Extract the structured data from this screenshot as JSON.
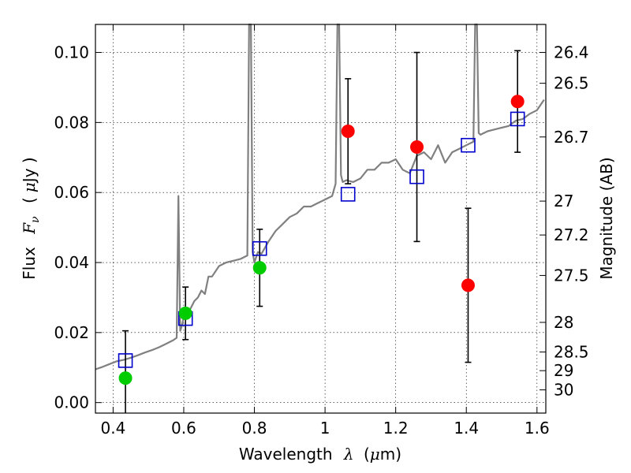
{
  "chart_data": {
    "type": "scatter",
    "title": "",
    "xlabel": "Wavelength",
    "xlabel_symbol": "λ",
    "xlabel_unit_pre": "(",
    "xlabel_unit_mu": "μ",
    "xlabel_unit_post": "m)",
    "ylabel": "Flux",
    "ylabel_symbol": "F",
    "ylabel_symbol_sub": "ν",
    "ylabel_unit_pre": "(",
    "ylabel_unit_mu": "μ",
    "ylabel_unit_post": "Jy )",
    "y2label": "Magnitude (AB)",
    "xlim": [
      0.35,
      1.625
    ],
    "ylim": [
      -0.003,
      0.108
    ],
    "grid": true,
    "xticks": [
      0.4,
      0.6,
      0.8,
      1.0,
      1.2,
      1.4,
      1.6
    ],
    "xtick_labels": [
      "0.4",
      "0.6",
      "0.8",
      "1",
      "1.2",
      "1.4",
      "1.6"
    ],
    "yticks": [
      0.0,
      0.02,
      0.04,
      0.06,
      0.08,
      0.1
    ],
    "ytick_labels": [
      "0.00",
      "0.02",
      "0.04",
      "0.06",
      "0.08",
      "0.10"
    ],
    "mag_ticks": [
      26.4,
      26.5,
      26.7,
      27,
      27.2,
      27.5,
      28,
      28.5,
      29,
      30
    ],
    "mag_tick_labels": [
      "26.4",
      "26.5",
      "26.7",
      "27",
      "27.2",
      "27.5",
      "28",
      "28.5",
      "29",
      "30"
    ],
    "series": [
      {
        "marker": "line",
        "color": "#808080",
        "x": [
          0.35,
          0.37,
          0.39,
          0.41,
          0.43,
          0.45,
          0.47,
          0.49,
          0.51,
          0.53,
          0.55,
          0.57,
          0.58,
          0.585,
          0.59,
          0.595,
          0.6,
          0.61,
          0.62,
          0.63,
          0.64,
          0.65,
          0.66,
          0.67,
          0.68,
          0.7,
          0.72,
          0.74,
          0.76,
          0.78,
          0.785,
          0.79,
          0.795,
          0.8,
          0.81,
          0.82,
          0.84,
          0.86,
          0.88,
          0.9,
          0.92,
          0.94,
          0.96,
          0.98,
          1.0,
          1.02,
          1.03,
          1.035,
          1.04,
          1.045,
          1.05,
          1.06,
          1.08,
          1.1,
          1.12,
          1.14,
          1.16,
          1.18,
          1.2,
          1.22,
          1.24,
          1.26,
          1.28,
          1.3,
          1.32,
          1.34,
          1.36,
          1.38,
          1.4,
          1.42,
          1.425,
          1.43,
          1.435,
          1.44,
          1.46,
          1.48,
          1.5,
          1.52,
          1.54,
          1.56,
          1.58,
          1.6,
          1.62
        ],
        "y": [
          0.0095,
          0.0102,
          0.011,
          0.0118,
          0.0122,
          0.0128,
          0.0135,
          0.0143,
          0.015,
          0.0158,
          0.0168,
          0.0178,
          0.0185,
          0.059,
          0.0205,
          0.022,
          0.0245,
          0.0255,
          0.027,
          0.029,
          0.03,
          0.032,
          0.031,
          0.036,
          0.036,
          0.039,
          0.04,
          0.0405,
          0.041,
          0.042,
          0.108,
          0.108,
          0.043,
          0.04,
          0.043,
          0.0425,
          0.046,
          0.049,
          0.051,
          0.053,
          0.054,
          0.056,
          0.056,
          0.057,
          0.058,
          0.059,
          0.0625,
          0.108,
          0.108,
          0.065,
          0.063,
          0.0635,
          0.063,
          0.064,
          0.0665,
          0.0665,
          0.0685,
          0.0685,
          0.0695,
          0.0665,
          0.0655,
          0.0705,
          0.0715,
          0.0695,
          0.0735,
          0.0685,
          0.0715,
          0.0725,
          0.0735,
          0.0745,
          0.108,
          0.108,
          0.077,
          0.0765,
          0.0775,
          0.078,
          0.0785,
          0.079,
          0.0805,
          0.081,
          0.0825,
          0.0835,
          0.0865
        ]
      },
      {
        "marker": "square",
        "color": "#0000cc",
        "x": [
          0.435,
          0.605,
          0.815,
          1.065,
          1.26,
          1.405,
          1.545
        ],
        "y": [
          0.012,
          0.024,
          0.044,
          0.0595,
          0.0645,
          0.0735,
          0.081
        ]
      },
      {
        "marker": "circle",
        "color": "#00cc00",
        "x": [
          0.435,
          0.605,
          0.815
        ],
        "y": [
          0.007,
          0.0255,
          0.0385
        ],
        "err": [
          0.0135,
          0.0075,
          0.011
        ]
      },
      {
        "marker": "circle",
        "color": "#ff0000",
        "x": [
          1.065,
          1.26,
          1.405,
          1.545
        ],
        "y": [
          0.0775,
          0.073,
          0.0335,
          0.086
        ],
        "err": [
          0.015,
          0.027,
          0.022,
          0.0145
        ]
      }
    ]
  }
}
